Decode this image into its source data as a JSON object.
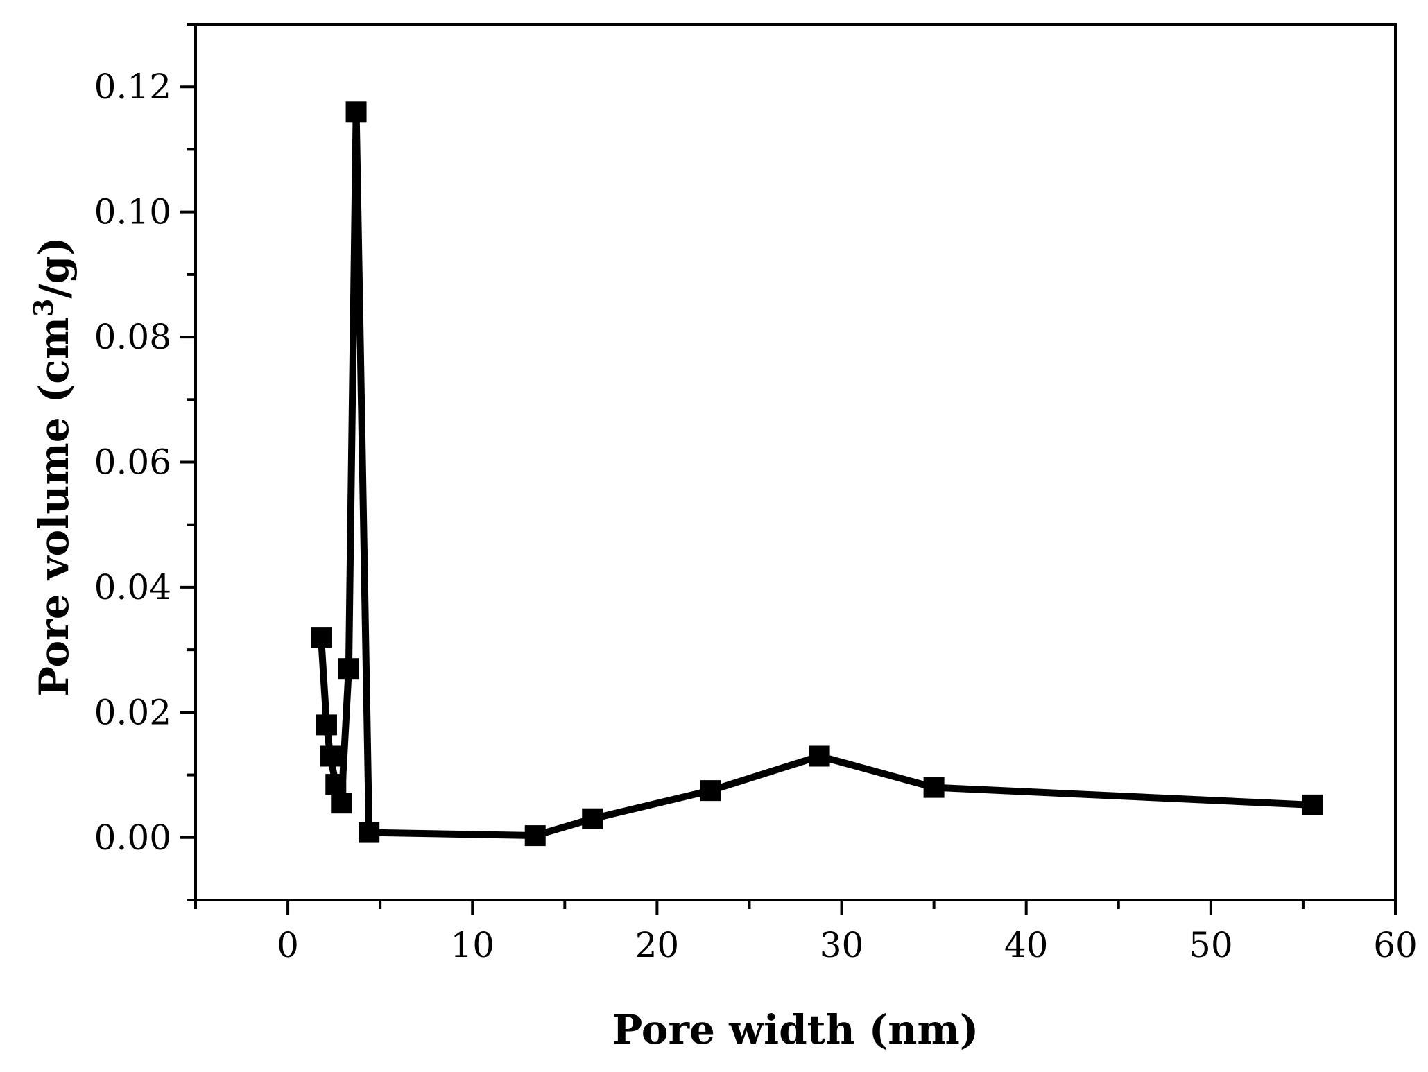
{
  "chart_data": {
    "type": "line",
    "title": "",
    "xlabel": "Pore width (nm)",
    "ylabel": {
      "main": "Pore volume (cm",
      "superscript": "3",
      "tail": "/g)"
    },
    "xlim": [
      -5,
      60
    ],
    "ylim": [
      -0.01,
      0.13
    ],
    "xticks": [
      0,
      10,
      20,
      30,
      40,
      50,
      60
    ],
    "xtick_labels": [
      "0",
      "10",
      "20",
      "30",
      "40",
      "50",
      "60"
    ],
    "yticks": [
      0,
      0.02,
      0.04,
      0.06,
      0.08,
      0.1,
      0.12
    ],
    "ytick_labels": [
      "0.00",
      "0.02",
      "0.04",
      "0.06",
      "0.08",
      "0.10",
      "0.12"
    ],
    "grid": false,
    "legend": "none",
    "marker": "filled-square",
    "colors": {
      "series": "#000000",
      "axes": "#000000",
      "background": "#ffffff"
    },
    "series": [
      {
        "x": [
          1.8,
          2.1,
          2.3,
          2.6,
          2.9,
          3.3,
          3.7,
          4.4,
          13.4,
          16.5,
          22.9,
          28.8,
          35.0,
          55.5
        ],
        "values": [
          0.032,
          0.018,
          0.013,
          0.0085,
          0.0055,
          0.027,
          0.116,
          0.0008,
          0.0003,
          0.003,
          0.0075,
          0.013,
          0.008,
          0.0052
        ]
      }
    ]
  }
}
